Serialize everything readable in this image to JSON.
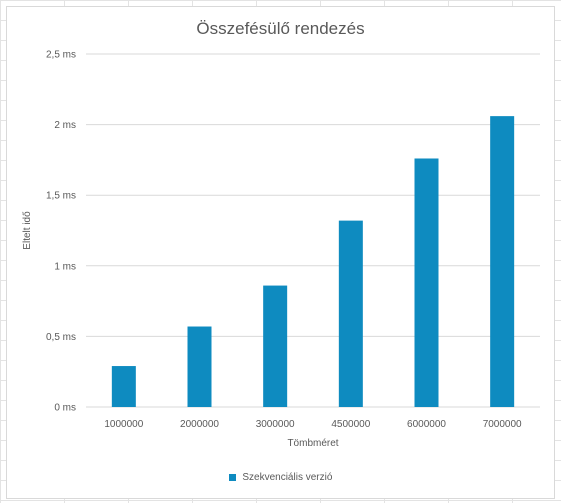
{
  "chart_data": {
    "type": "bar",
    "title": "Összefésülő rendezés",
    "xlabel": "Tömbméret",
    "ylabel": "Eltelt idő",
    "categories": [
      "1000000",
      "2000000",
      "3000000",
      "4500000",
      "6000000",
      "7000000"
    ],
    "series": [
      {
        "name": "Szekvenciális verzió",
        "values": [
          0.29,
          0.57,
          0.86,
          1.32,
          1.76,
          2.06
        ],
        "color": "#0e8bc0"
      }
    ],
    "ylim": [
      0,
      2.5
    ],
    "yticks": [
      "0 ms",
      "0,5 ms",
      "1 ms",
      "1,5 ms",
      "2 ms",
      "2,5 ms"
    ],
    "grid": true,
    "legend_position": "bottom"
  }
}
